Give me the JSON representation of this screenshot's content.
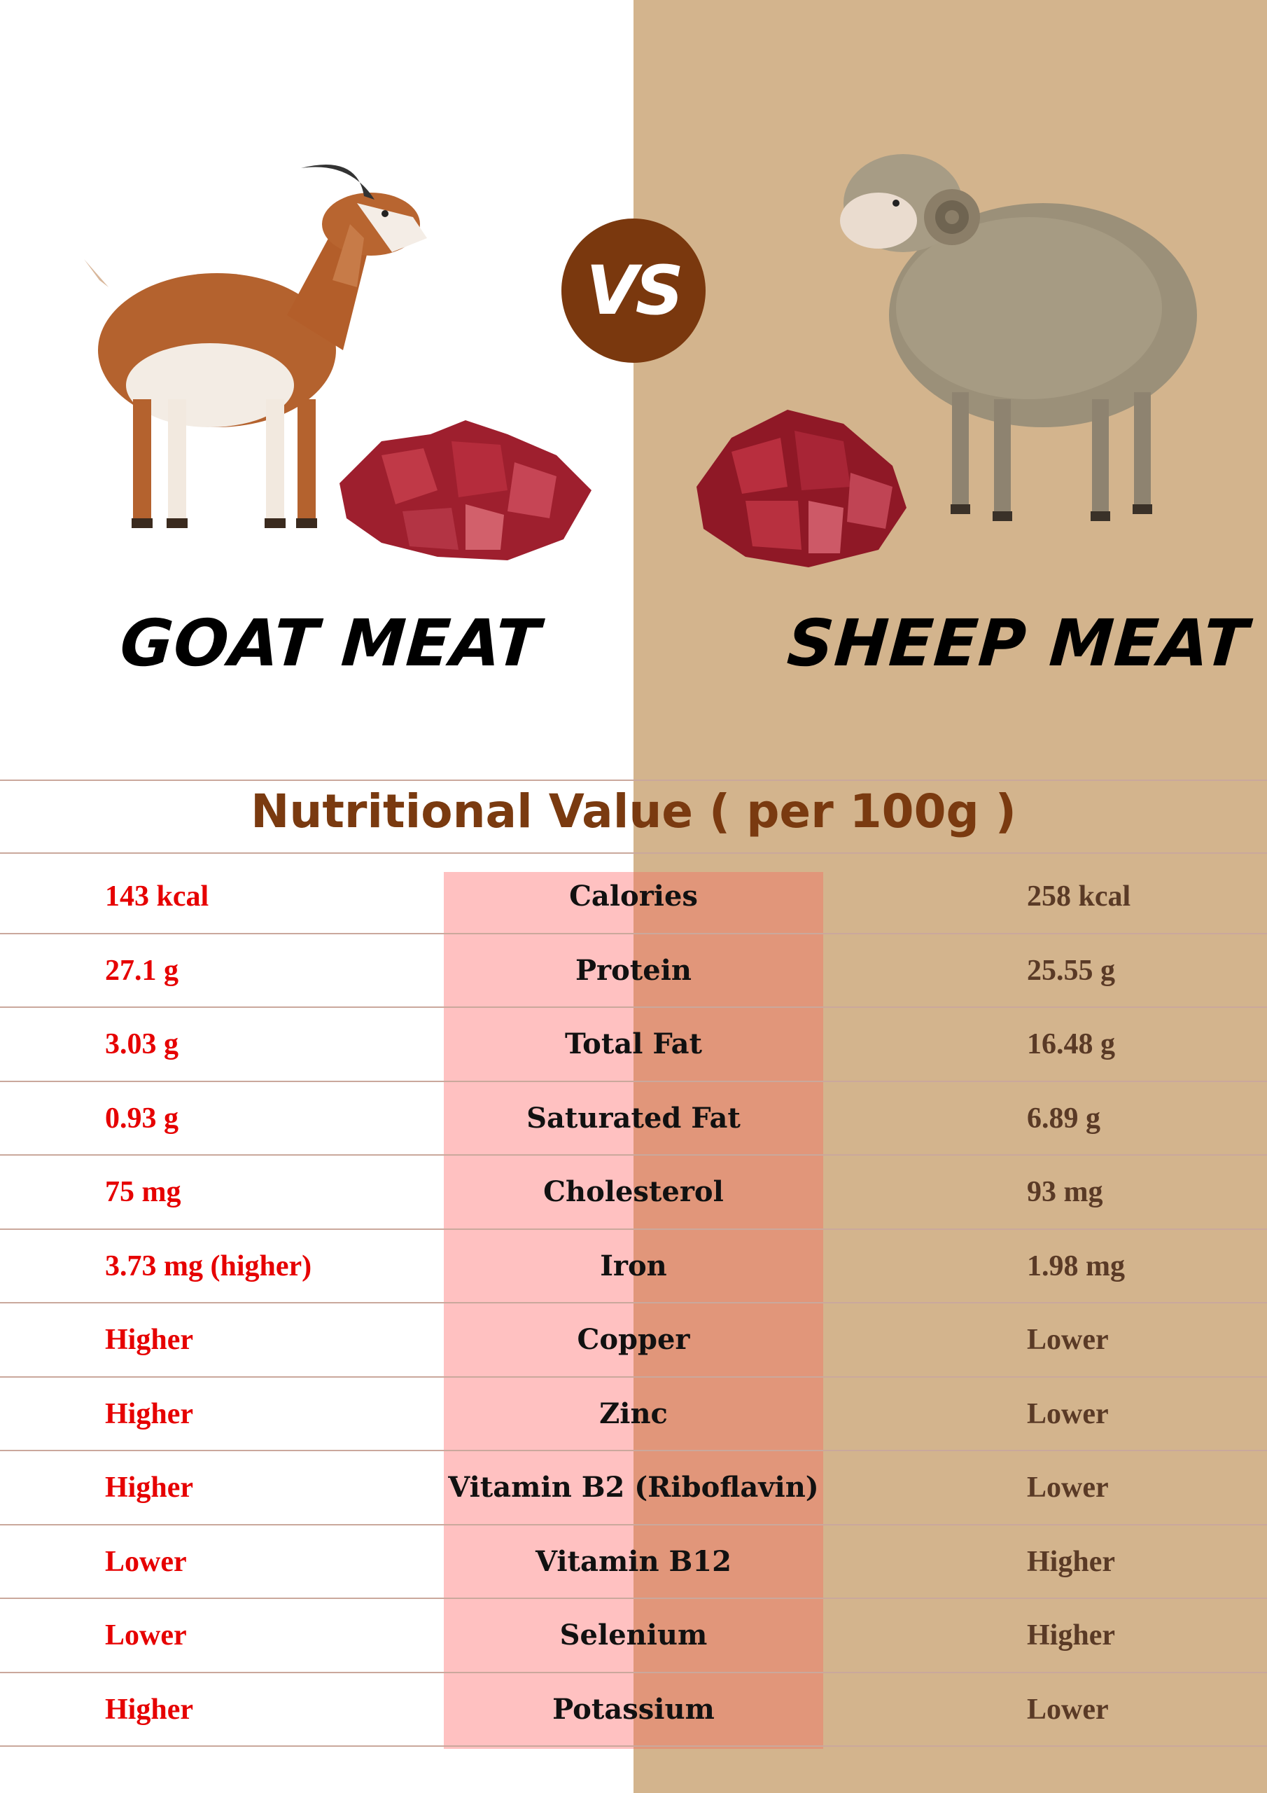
{
  "left_title": "GOAT MEAT",
  "right_title": "SHEEP MEAT",
  "vs_label": "VS",
  "section_title": "Nutritional Value  ( per 100g )",
  "colors": {
    "left_values": "#e60000",
    "right_values": "#5a3a26",
    "accent": "#7a380e",
    "right_panel": "#d3b48d"
  },
  "illustrations": [
    "goat",
    "goat-meat-cubes",
    "sheep",
    "sheep-meat-cubes"
  ],
  "rows": [
    {
      "goat": "143 kcal",
      "nutrient": "Calories",
      "sheep": "258 kcal"
    },
    {
      "goat": "27.1 g",
      "nutrient": "Protein",
      "sheep": "25.55 g"
    },
    {
      "goat": "3.03 g",
      "nutrient": "Total Fat",
      "sheep": "16.48 g"
    },
    {
      "goat": "0.93 g",
      "nutrient": "Saturated Fat",
      "sheep": "6.89 g"
    },
    {
      "goat": "75 mg",
      "nutrient": "Cholesterol",
      "sheep": "93 mg"
    },
    {
      "goat": "3.73 mg (higher)",
      "nutrient": "Iron",
      "sheep": "1.98 mg"
    },
    {
      "goat": "Higher",
      "nutrient": "Copper",
      "sheep": "Lower"
    },
    {
      "goat": "Higher",
      "nutrient": "Zinc",
      "sheep": "Lower"
    },
    {
      "goat": "Higher",
      "nutrient": "Vitamin B2 (Riboflavin)",
      "sheep": "Lower"
    },
    {
      "goat": "Lower",
      "nutrient": "Vitamin B12",
      "sheep": "Higher"
    },
    {
      "goat": "Lower",
      "nutrient": "Selenium",
      "sheep": "Higher"
    },
    {
      "goat": "Higher",
      "nutrient": "Potassium",
      "sheep": "Lower"
    }
  ]
}
